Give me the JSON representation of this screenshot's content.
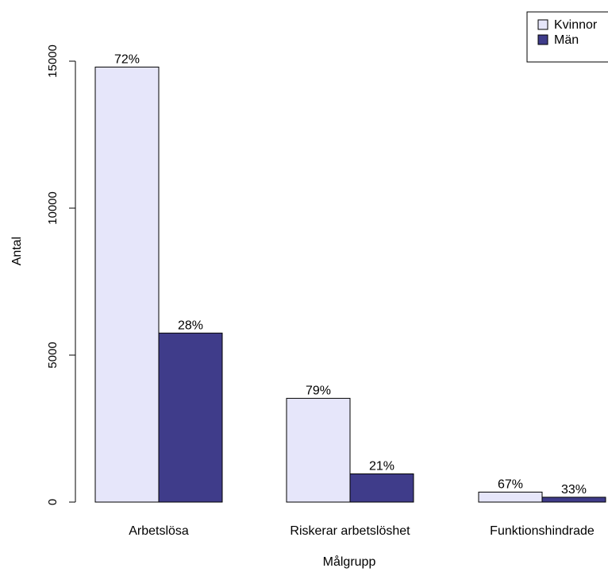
{
  "chart_data": {
    "type": "bar",
    "categories": [
      "Arbetslösa",
      "Riskerar arbetslöshet",
      "Funktionshindrade"
    ],
    "series": [
      {
        "name": "Kvinnor",
        "color": "#e6e6fa",
        "values": [
          14800,
          3530,
          340
        ],
        "labels": [
          "72%",
          "79%",
          "67%"
        ]
      },
      {
        "name": "Män",
        "color": "#3f3c8a",
        "values": [
          5750,
          960,
          165
        ],
        "labels": [
          "28%",
          "21%",
          "33%"
        ]
      }
    ],
    "xlabel": "Målgrupp",
    "ylabel": "Antal",
    "yticks": [
      0,
      5000,
      10000,
      15000
    ],
    "ylim": [
      0,
      15000
    ],
    "legend_position": "top-right",
    "grid": false
  }
}
